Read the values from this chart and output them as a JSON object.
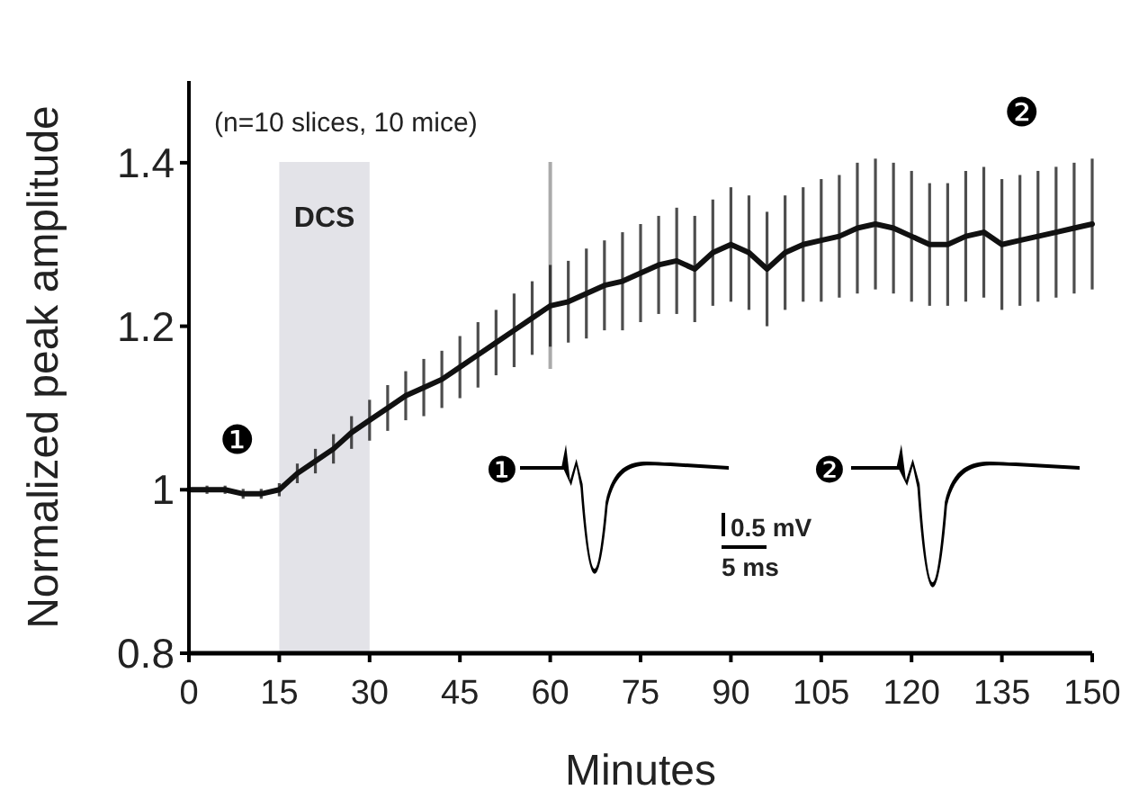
{
  "chart_data": {
    "type": "line",
    "xlabel": "Minutes",
    "ylabel": "Normalized peak amplitude",
    "x": [
      0,
      3,
      6,
      9,
      12,
      15,
      18,
      21,
      24,
      27,
      30,
      33,
      36,
      39,
      42,
      45,
      48,
      51,
      54,
      57,
      60,
      63,
      66,
      69,
      72,
      75,
      78,
      81,
      84,
      87,
      90,
      93,
      96,
      99,
      102,
      105,
      108,
      111,
      114,
      117,
      120,
      123,
      126,
      129,
      132,
      135,
      138,
      141,
      144,
      147,
      150
    ],
    "series": [
      {
        "color": "#111111",
        "values": [
          1.0,
          1.0,
          1.0,
          0.995,
          0.995,
          1.0,
          1.02,
          1.035,
          1.05,
          1.07,
          1.085,
          1.1,
          1.115,
          1.125,
          1.135,
          1.15,
          1.165,
          1.18,
          1.195,
          1.21,
          1.225,
          1.23,
          1.24,
          1.25,
          1.255,
          1.265,
          1.275,
          1.28,
          1.27,
          1.29,
          1.3,
          1.29,
          1.27,
          1.29,
          1.3,
          1.305,
          1.31,
          1.32,
          1.325,
          1.32,
          1.31,
          1.3,
          1.3,
          1.31,
          1.315,
          1.3,
          1.305,
          1.31,
          1.315,
          1.32,
          1.325
        ],
        "errors": [
          0.005,
          0.005,
          0.005,
          0.006,
          0.006,
          0.008,
          0.012,
          0.015,
          0.018,
          0.02,
          0.025,
          0.028,
          0.03,
          0.035,
          0.035,
          0.038,
          0.04,
          0.04,
          0.045,
          0.045,
          0.05,
          0.05,
          0.055,
          0.055,
          0.06,
          0.06,
          0.06,
          0.065,
          0.065,
          0.065,
          0.07,
          0.07,
          0.07,
          0.07,
          0.07,
          0.075,
          0.075,
          0.08,
          0.08,
          0.08,
          0.08,
          0.075,
          0.075,
          0.08,
          0.08,
          0.08,
          0.08,
          0.08,
          0.08,
          0.08,
          0.08
        ]
      }
    ],
    "xlim": [
      0,
      150
    ],
    "xticks": [
      0,
      15,
      30,
      45,
      60,
      75,
      90,
      105,
      120,
      135,
      150
    ],
    "ylim": [
      0.8,
      1.5
    ],
    "yticks": [
      {
        "value": 0.8,
        "label": "0.8"
      },
      {
        "value": 1,
        "label": "1"
      },
      {
        "value": 1.2,
        "label": "1.2"
      },
      {
        "value": 1.4,
        "label": "1.4"
      }
    ],
    "grid": false,
    "marker": "none",
    "bands": [
      {
        "axis": "x",
        "from": 15,
        "to": 30,
        "label": "DCS",
        "color": "#e3e3e8"
      }
    ],
    "ref_lines": [
      {
        "axis": "x",
        "value": 60,
        "color": "#aaaaaa"
      }
    ],
    "annotations": [
      "(n=10 slices, 10 mice)",
      "❶",
      "❷",
      "❶",
      "❷",
      "0.5 mV",
      "5 ms"
    ]
  }
}
